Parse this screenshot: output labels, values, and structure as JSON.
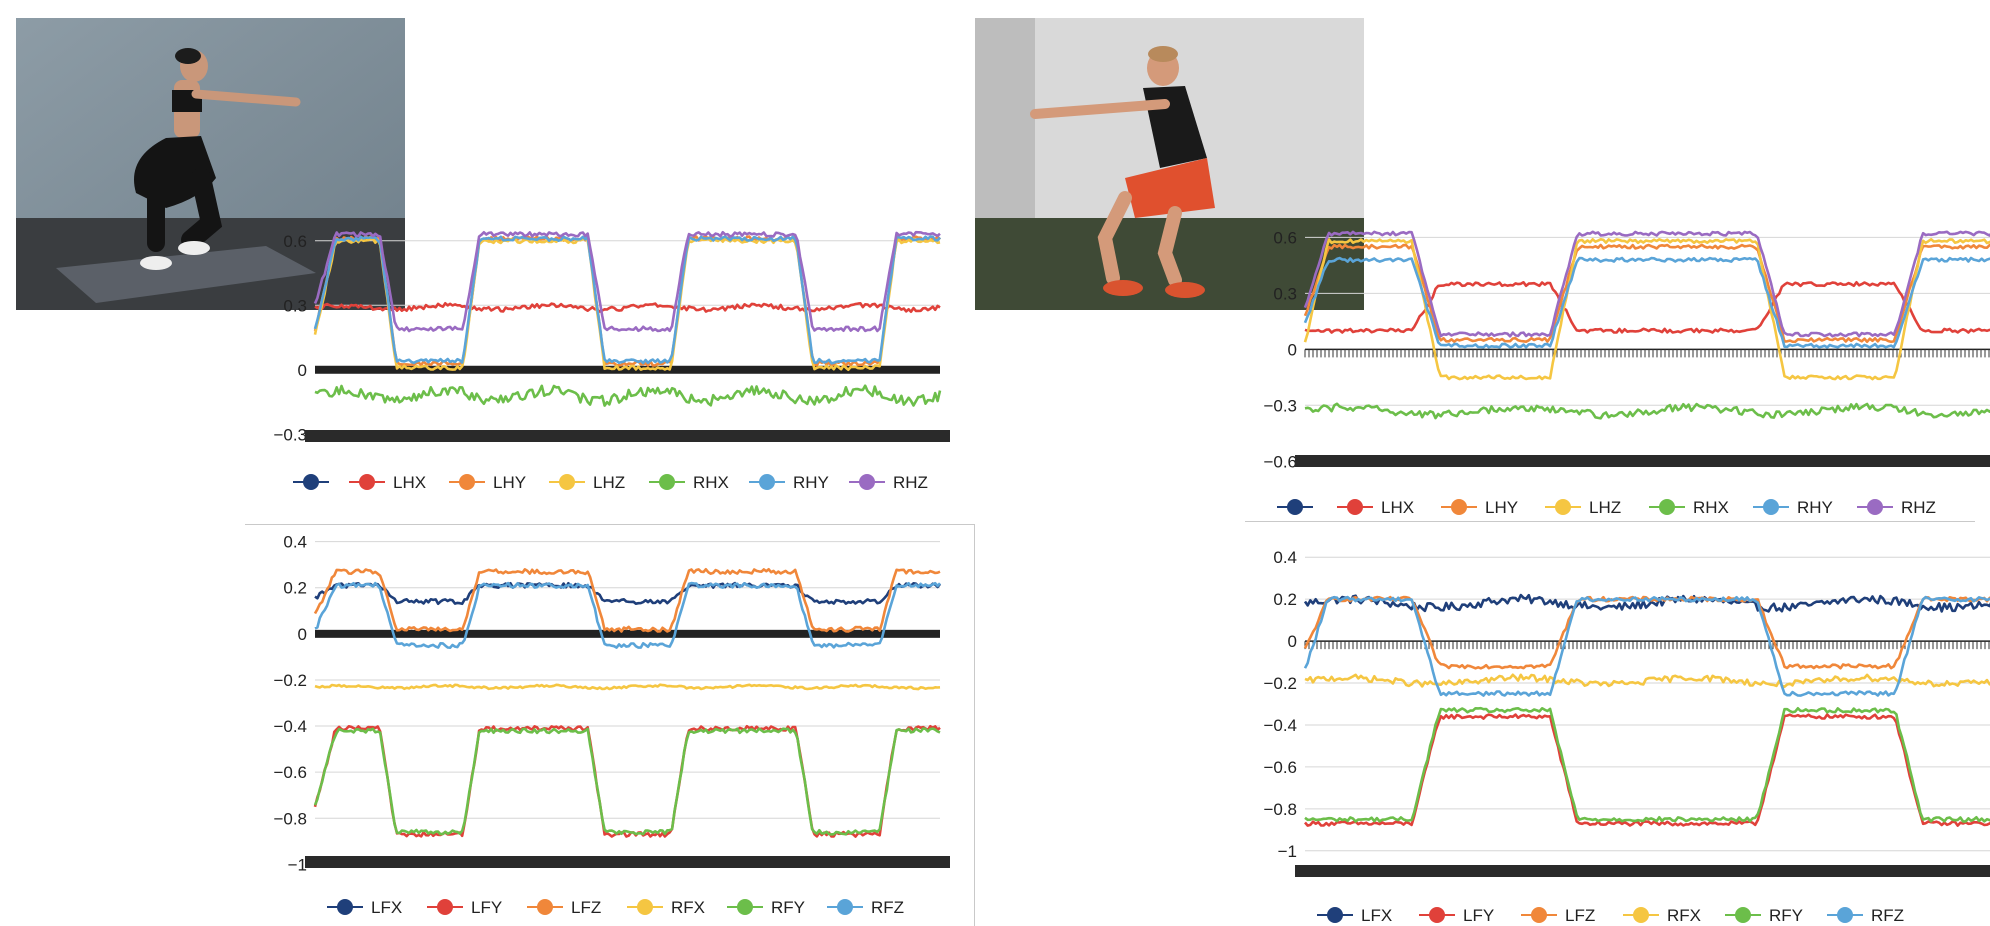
{
  "panels": [
    {
      "id": "tl",
      "photo_alt": "woman performing a squat"
    },
    {
      "id": "tr",
      "photo_alt": "man performing a squat"
    }
  ],
  "chart_data": [
    {
      "id": "top-left",
      "type": "line",
      "title": "",
      "ylim": [
        -0.35,
        0.72
      ],
      "yticks": [
        0.6,
        0.3,
        0,
        -0.3
      ],
      "ytick_labels": [
        "0.6",
        "0.3",
        "0",
        "−0.3"
      ],
      "zero_baseline": "thick-black",
      "grid": true,
      "legend": "bottom",
      "x_axis_labels": "overlapping-dense",
      "cycles": 3,
      "series": [
        {
          "name": "",
          "color": "#1f3f7a",
          "values": []
        },
        {
          "name": "LHX",
          "color": "#e0413a",
          "shape": "flat",
          "base": 0.29,
          "amp": 0.02
        },
        {
          "name": "LHY",
          "color": "#f0873a",
          "shape": "squat",
          "high": 0.61,
          "low": 0.03
        },
        {
          "name": "LHZ",
          "color": "#f5c642",
          "shape": "squat",
          "high": 0.6,
          "low": 0.01
        },
        {
          "name": "RHX",
          "color": "#6cbe4a",
          "shape": "flat",
          "base": -0.12,
          "amp": 0.05
        },
        {
          "name": "RHY",
          "color": "#5aa4d8",
          "shape": "squat",
          "high": 0.61,
          "low": 0.04
        },
        {
          "name": "RHZ",
          "color": "#9a6bc2",
          "shape": "squat",
          "high": 0.63,
          "low": 0.19
        }
      ]
    },
    {
      "id": "bottom-left",
      "type": "line",
      "title": "",
      "ylim": [
        -1.02,
        0.42
      ],
      "yticks": [
        0.4,
        0.2,
        0,
        -0.2,
        -0.4,
        -0.6,
        -0.8,
        -1
      ],
      "ytick_labels": [
        "0.4",
        "0.2",
        "0",
        "−0.2",
        "−0.4",
        "−0.6",
        "−0.8",
        "−1"
      ],
      "zero_baseline": "thick-black",
      "grid": true,
      "legend": "bottom",
      "x_axis_labels": "overlapping-dense",
      "cycles": 3,
      "series": [
        {
          "name": "LFX",
          "color": "#1f3f7a",
          "shape": "squat",
          "high": 0.21,
          "low": 0.14
        },
        {
          "name": "LFY",
          "color": "#e0413a",
          "shape": "squat",
          "high": -0.41,
          "low": -0.87
        },
        {
          "name": "LFZ",
          "color": "#f0873a",
          "shape": "squat",
          "high": 0.27,
          "low": 0.02
        },
        {
          "name": "RFX",
          "color": "#f5c642",
          "shape": "flat",
          "base": -0.23,
          "amp": 0.01
        },
        {
          "name": "RFY",
          "color": "#6cbe4a",
          "shape": "squat",
          "high": -0.42,
          "low": -0.86
        },
        {
          "name": "RFZ",
          "color": "#5aa4d8",
          "shape": "squat",
          "high": 0.21,
          "low": -0.05
        }
      ]
    },
    {
      "id": "top-right",
      "type": "line",
      "title": "",
      "ylim": [
        -0.62,
        0.72
      ],
      "yticks": [
        0.6,
        0.3,
        0,
        -0.3,
        -0.6
      ],
      "ytick_labels": [
        "0.6",
        "0.3",
        "0",
        "−0.3",
        "−0.6"
      ],
      "zero_baseline": "dense-ticks",
      "grid": true,
      "legend": "bottom",
      "x_axis_labels": "overlapping-dense",
      "cycles": 2,
      "series": [
        {
          "name": "",
          "color": "#1f3f7a",
          "values": []
        },
        {
          "name": "LHX",
          "color": "#e0413a",
          "shape": "inverse",
          "high": 0.35,
          "low": 0.1
        },
        {
          "name": "LHY",
          "color": "#f0873a",
          "shape": "squat",
          "high": 0.55,
          "low": 0.05
        },
        {
          "name": "LHZ",
          "color": "#f5c642",
          "shape": "squat",
          "high": 0.58,
          "low": -0.15
        },
        {
          "name": "RHX",
          "color": "#6cbe4a",
          "shape": "flat",
          "base": -0.33,
          "amp": 0.04
        },
        {
          "name": "RHY",
          "color": "#5aa4d8",
          "shape": "squat",
          "high": 0.48,
          "low": 0.02
        },
        {
          "name": "RHZ",
          "color": "#9a6bc2",
          "shape": "squat",
          "high": 0.62,
          "low": 0.08
        }
      ]
    },
    {
      "id": "bottom-right",
      "type": "line",
      "title": "",
      "ylim": [
        -1.02,
        0.42
      ],
      "yticks": [
        0.4,
        0.2,
        0,
        -0.2,
        -0.4,
        -0.6,
        -0.8,
        -1
      ],
      "ytick_labels": [
        "0.4",
        "0.2",
        "0",
        "−0.2",
        "−0.4",
        "−0.6",
        "−0.8",
        "−1"
      ],
      "zero_baseline": "dense-ticks",
      "grid": true,
      "legend": "bottom",
      "x_axis_labels": "overlapping-dense",
      "cycles": 2,
      "series": [
        {
          "name": "LFX",
          "color": "#1f3f7a",
          "shape": "flat",
          "base": 0.18,
          "amp": 0.04
        },
        {
          "name": "LFY",
          "color": "#e0413a",
          "shape": "inverse",
          "high": -0.36,
          "low": -0.87
        },
        {
          "name": "LFZ",
          "color": "#f0873a",
          "shape": "squat",
          "high": 0.2,
          "low": -0.12
        },
        {
          "name": "RFX",
          "color": "#f5c642",
          "shape": "flat",
          "base": -0.19,
          "amp": 0.03
        },
        {
          "name": "RFY",
          "color": "#6cbe4a",
          "shape": "inverse",
          "high": -0.33,
          "low": -0.85
        },
        {
          "name": "RFZ",
          "color": "#5aa4d8",
          "shape": "squat",
          "high": 0.2,
          "low": -0.25
        }
      ]
    }
  ]
}
